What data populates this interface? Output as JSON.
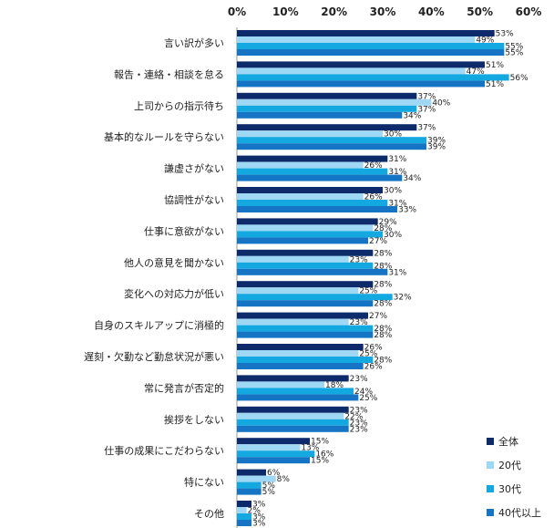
{
  "chart_data": {
    "type": "bar",
    "orientation": "horizontal",
    "title": "",
    "xlabel": "",
    "ylabel": "",
    "xlim": [
      0,
      60
    ],
    "ticks": [
      0,
      10,
      20,
      30,
      40,
      50,
      60
    ],
    "tick_suffix": "%",
    "grid": false,
    "legend_position": "bottom-right",
    "categories": [
      "言い訳が多い",
      "報告・連絡・相談を怠る",
      "上司からの指示待ち",
      "基本的なルールを守らない",
      "謙虚さがない",
      "協調性がない",
      "仕事に意欲がない",
      "他人の意見を聞かない",
      "変化への対応力が低い",
      "自身のスキルアップに消極的",
      "遅刻・欠勤など勤怠状況が悪い",
      "常に発言が否定的",
      "挨拶をしない",
      "仕事の成果にこだわらない",
      "特にない",
      "その他"
    ],
    "series": [
      {
        "name": "全体",
        "color": "#0d2a6b",
        "values": [
          53,
          51,
          37,
          37,
          31,
          30,
          29,
          28,
          28,
          27,
          26,
          23,
          23,
          15,
          6,
          3
        ]
      },
      {
        "name": "20代",
        "color": "#9fd8f5",
        "values": [
          49,
          47,
          40,
          30,
          26,
          26,
          28,
          23,
          25,
          23,
          25,
          18,
          22,
          13,
          8,
          2
        ]
      },
      {
        "name": "30代",
        "color": "#14a8e0",
        "values": [
          55,
          56,
          37,
          39,
          31,
          31,
          30,
          28,
          32,
          28,
          28,
          24,
          23,
          16,
          5,
          3
        ]
      },
      {
        "name": "40代以上",
        "color": "#1574c4",
        "values": [
          55,
          51,
          34,
          39,
          34,
          33,
          27,
          31,
          28,
          28,
          26,
          25,
          23,
          15,
          5,
          3
        ]
      }
    ]
  }
}
